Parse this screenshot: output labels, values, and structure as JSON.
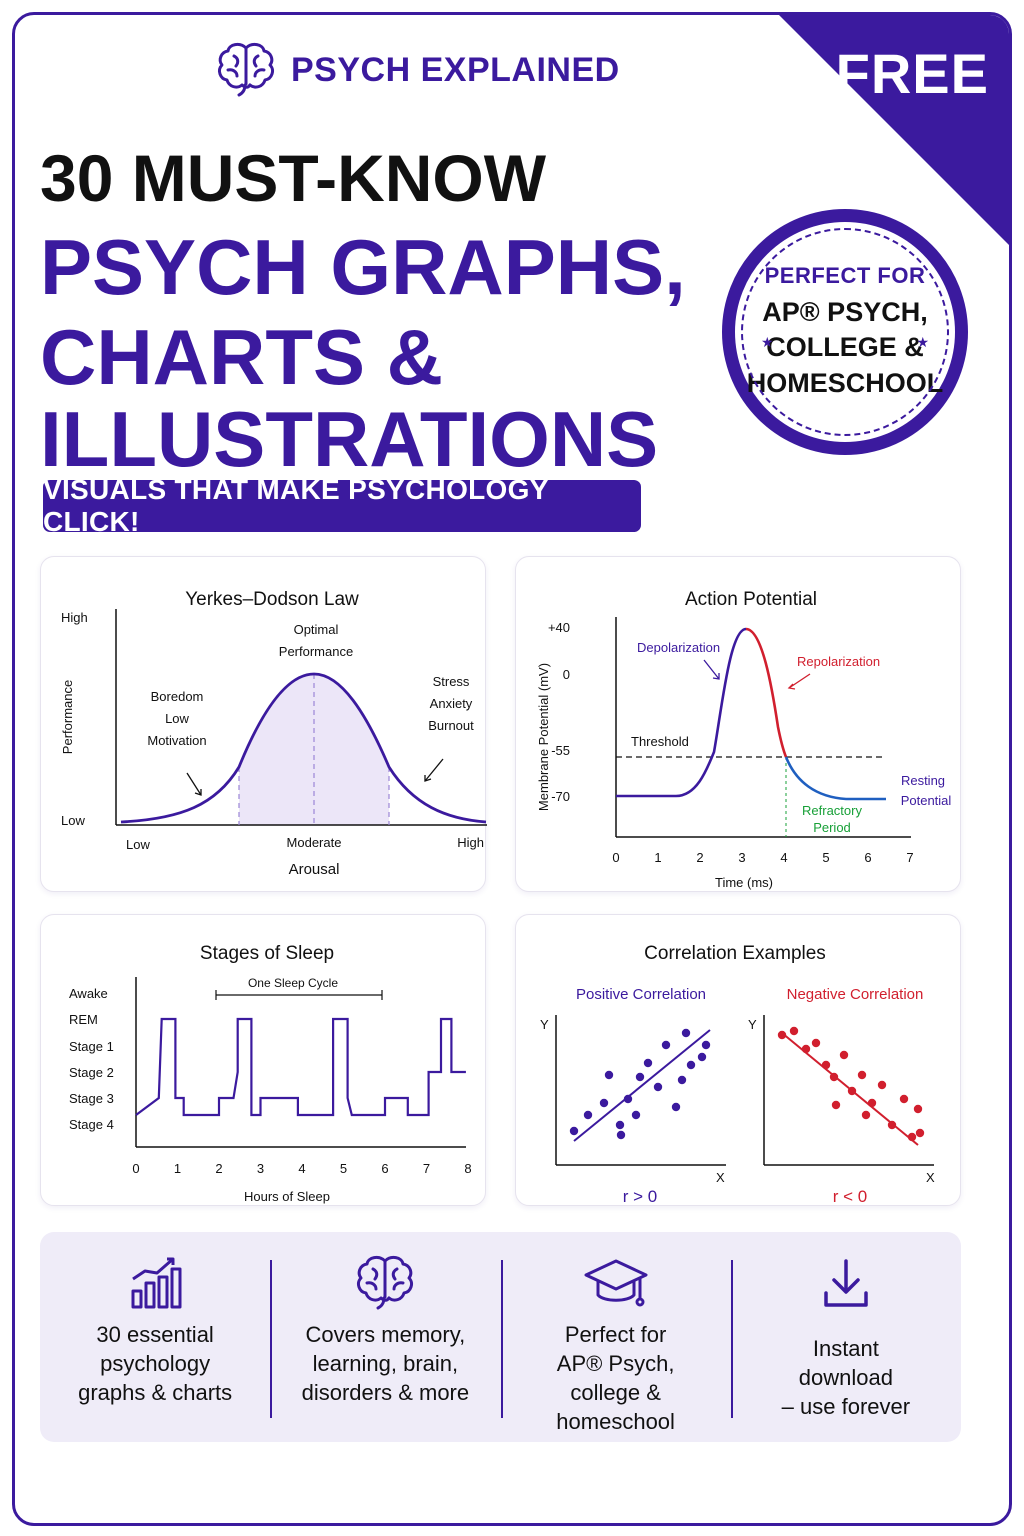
{
  "ribbon": "FREE",
  "brand": {
    "name": "PSYCH EXPLAINED",
    "icon": "brain-icon"
  },
  "title": {
    "line1": "30 MUST-KNOW",
    "line2": "PSYCH GRAPHS,",
    "line3": "CHARTS &",
    "line4": "ILLUSTRATIONS"
  },
  "tagline": "VISUALS THAT MAKE PSYCHOLOGY CLICK!",
  "seal": {
    "top": "PERFECT FOR",
    "line1": "AP® PSYCH,",
    "line2": "COLLEGE &",
    "line3": "HOMESCHOOL"
  },
  "colors": {
    "brand": "#3b1a9e",
    "red": "#d11f2e",
    "green": "#18a038",
    "blue": "#1f5fc0",
    "shade": "#ece6f8"
  },
  "yerkes": {
    "title": "Yerkes–Dodson Law",
    "y_axis": "Performance",
    "y_high": "High",
    "y_low": "Low",
    "x_axis": "Arousal",
    "x_low": "Low",
    "x_mid": "Moderate",
    "x_high": "High",
    "peak": [
      "Optimal",
      "Performance"
    ],
    "left": [
      "Boredom",
      "Low",
      "Motivation"
    ],
    "right": [
      "Stress",
      "Anxiety",
      "Burnout"
    ]
  },
  "action": {
    "title": "Action Potential",
    "y_axis": "Membrane Potential  (mV)",
    "x_axis": "Time (ms)",
    "y_ticks": [
      "+40",
      "0",
      "-55",
      "-70"
    ],
    "x_ticks": [
      "0",
      "1",
      "2",
      "3",
      "4",
      "5",
      "6",
      "7"
    ],
    "depolarization": "Depolarization",
    "repolarization": "Repolarization",
    "threshold": "Threshold",
    "resting": [
      "Resting",
      "Potential"
    ],
    "refractory": [
      "Refractory",
      "Period"
    ]
  },
  "sleep": {
    "title": "Stages of Sleep",
    "x_axis": "Hours of Sleep",
    "cycle": "One Sleep Cycle",
    "stages": [
      "Awake",
      "REM",
      "Stage 1",
      "Stage 2",
      "Stage 3",
      "Stage 4"
    ],
    "x_ticks": [
      "0",
      "1",
      "2",
      "3",
      "4",
      "5",
      "6",
      "7",
      "8"
    ]
  },
  "correlation": {
    "title": "Correlation Examples",
    "positive": {
      "label": "Positive Correlation",
      "formula": "r > 0"
    },
    "negative": {
      "label": "Negative Correlation",
      "formula": "r < 0"
    },
    "axis_y": "Y",
    "axis_x": "X"
  },
  "features": [
    {
      "icon": "bar-chart-icon",
      "text": [
        "30 essential",
        "psychology",
        "graphs & charts"
      ]
    },
    {
      "icon": "brain-icon",
      "text": [
        "Covers memory,",
        "learning, brain,",
        "disorders & more"
      ]
    },
    {
      "icon": "graduation-cap-icon",
      "text": [
        "Perfect for",
        "AP® Psych,",
        "college &",
        "homeschool"
      ]
    },
    {
      "icon": "download-icon",
      "text": [
        "Instant",
        "download",
        "– use forever"
      ]
    }
  ]
}
